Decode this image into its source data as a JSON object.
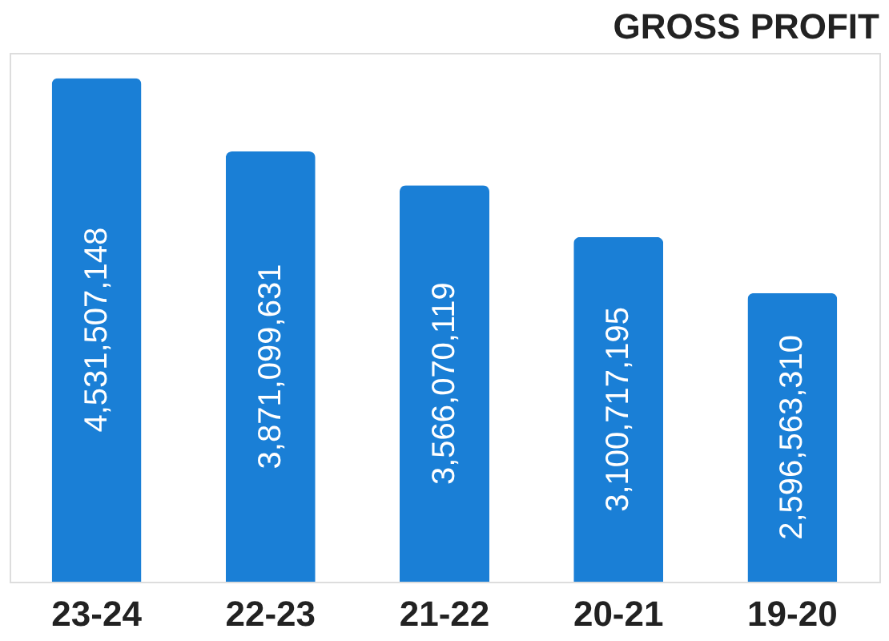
{
  "chart_data": {
    "type": "bar",
    "title": "GROSS PROFIT",
    "categories": [
      "23-24",
      "22-23",
      "21-22",
      "20-21",
      "19-20"
    ],
    "values": [
      4531507148,
      3871099631,
      3566070119,
      3100717195,
      2596563310
    ],
    "value_labels": [
      "4,531,507,148",
      "3,871,099,631",
      "3,566,070,119",
      "3,100,717,195",
      "2,596,563,310"
    ],
    "color": "#1a7fd6"
  }
}
